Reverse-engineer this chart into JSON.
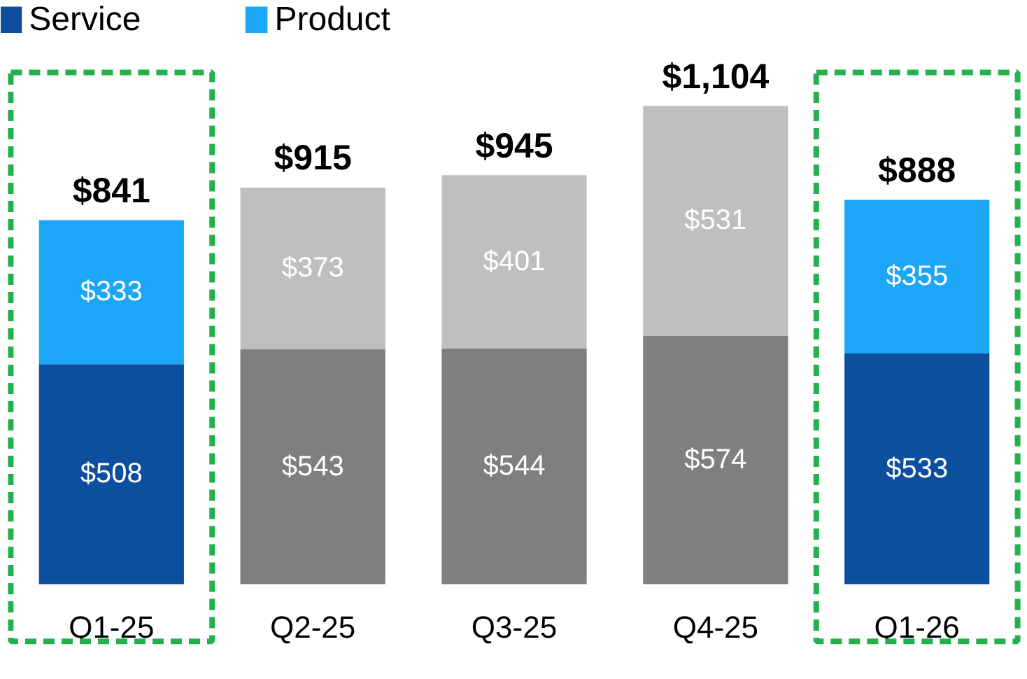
{
  "chart_data": {
    "type": "bar",
    "stacked": true,
    "categories": [
      "Q1-25",
      "Q2-25",
      "Q3-25",
      "Q4-25",
      "Q1-26"
    ],
    "series": [
      {
        "name": "Service",
        "color": "#0b4f9e",
        "colors": [
          "#0b4f9e",
          "#7f7f7f",
          "#7f7f7f",
          "#7f7f7f",
          "#0b4f9e"
        ],
        "values": [
          508,
          543,
          544,
          574,
          533
        ],
        "value_labels": [
          "$508",
          "$543",
          "$544",
          "$574",
          "$533"
        ]
      },
      {
        "name": "Product",
        "color": "#1ba6f7",
        "colors": [
          "#1ba6f7",
          "#bfbfbf",
          "#bfbfbf",
          "#bfbfbf",
          "#1ba6f7"
        ],
        "values": [
          333,
          373,
          401,
          531,
          355
        ],
        "value_labels": [
          "$333",
          "$373",
          "$401",
          "$531",
          "$355"
        ]
      }
    ],
    "totals": [
      "$841",
      "$915",
      "$945",
      "$1,104",
      "$888"
    ],
    "legend": "top left",
    "grid": false
  }
}
